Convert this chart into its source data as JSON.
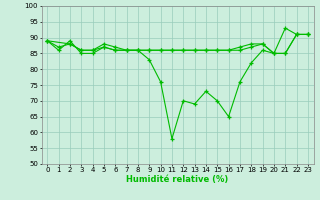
{
  "line1_x": [
    0,
    1,
    2,
    3,
    4,
    5,
    6,
    7,
    8,
    9,
    10,
    11,
    12,
    13,
    14,
    15,
    16,
    17,
    18,
    19,
    20,
    21,
    22,
    23
  ],
  "line1_y": [
    89,
    86,
    89,
    85,
    85,
    87,
    86,
    86,
    86,
    83,
    76,
    58,
    70,
    69,
    73,
    70,
    65,
    76,
    82,
    86,
    85,
    93,
    91,
    91
  ],
  "line2_x": [
    0,
    1,
    2,
    3,
    4,
    5,
    6,
    7,
    8,
    9,
    10,
    11,
    12,
    13,
    14,
    15,
    16,
    17,
    18,
    19,
    20,
    21,
    22,
    23
  ],
  "line2_y": [
    89,
    87,
    88,
    86,
    86,
    87,
    86,
    86,
    86,
    86,
    86,
    86,
    86,
    86,
    86,
    86,
    86,
    87,
    88,
    88,
    85,
    85,
    91,
    91
  ],
  "line3_x": [
    0,
    2,
    3,
    4,
    5,
    6,
    7,
    8,
    9,
    10,
    11,
    12,
    13,
    14,
    15,
    16,
    17,
    18,
    19,
    20,
    21,
    22,
    23
  ],
  "line3_y": [
    89,
    88,
    86,
    86,
    88,
    87,
    86,
    86,
    86,
    86,
    86,
    86,
    86,
    86,
    86,
    86,
    86,
    87,
    88,
    85,
    85,
    91,
    91
  ],
  "line_color": "#00bb00",
  "bg_color": "#cceedd",
  "grid_color": "#99ccbb",
  "xlabel": "Humidité relative (%)",
  "ylim": [
    50,
    100
  ],
  "xlim": [
    -0.5,
    23.5
  ],
  "yticks": [
    50,
    55,
    60,
    65,
    70,
    75,
    80,
    85,
    90,
    95,
    100
  ],
  "xticks": [
    0,
    1,
    2,
    3,
    4,
    5,
    6,
    7,
    8,
    9,
    10,
    11,
    12,
    13,
    14,
    15,
    16,
    17,
    18,
    19,
    20,
    21,
    22,
    23
  ],
  "xlabel_fontsize": 6.0,
  "tick_fontsize": 5.0
}
